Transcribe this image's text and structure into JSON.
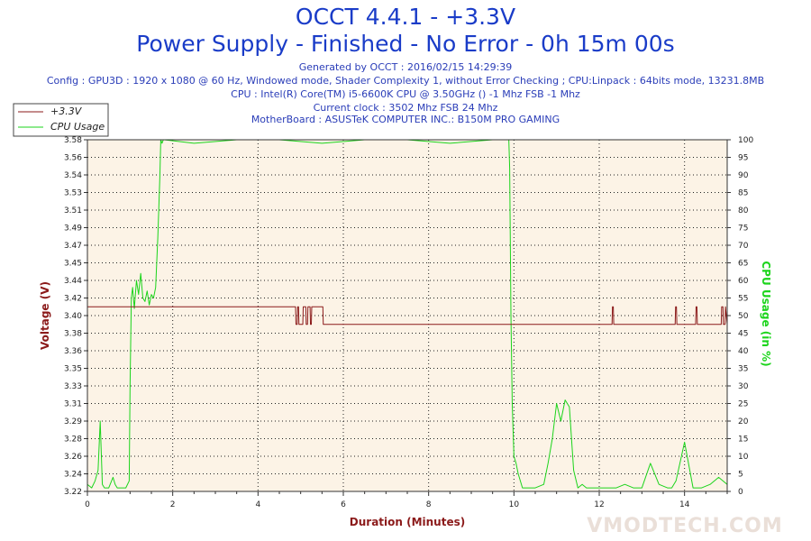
{
  "header": {
    "title": "OCCT 4.4.1 - +3.3V",
    "subtitle": "Power Supply - Finished - No Error - 0h 15m 00s",
    "info_lines": [
      "Generated by OCCT : 2016/02/15 14:29:39",
      "Config : GPU3D : 1920 x 1080 @ 60 Hz, Windowed mode, Shader Complexity 1, without Error Checking ; CPU:Linpack : 64bits mode, 13231.8MB",
      "CPU : Intel(R) Core(TM) i5-6600K CPU @ 3.50GHz () -1 Mhz FSB -1 Mhz",
      "Current clock : 3502 Mhz FSB 24 Mhz",
      "MotherBoard : ASUSTeK COMPUTER INC.: B150M PRO GAMING"
    ]
  },
  "watermark": "VMODTECH.COM",
  "colors": {
    "voltage": "#8b1a1a",
    "cpu_usage": "#1bd41b",
    "plot_bg": "#fcf3e6",
    "title": "#1a3cc8",
    "info": "#2a3db8"
  },
  "chart_data": {
    "type": "line",
    "title": "OCCT 4.4.1 - +3.3V",
    "subtitle": "Power Supply - Finished - No Error - 0h 15m 00s",
    "xlabel": "Duration (Minutes)",
    "ylabel_left": "Voltage (V)",
    "ylabel_right": "CPU Usage (in %)",
    "xlim": [
      0,
      15
    ],
    "x_ticks": [
      "0",
      "2",
      "4",
      "6",
      "8",
      "10",
      "12",
      "14"
    ],
    "y_left_lim": [
      3.22,
      3.58
    ],
    "y_left_ticks": [
      "3.22",
      "3.24",
      "3.26",
      "3.28",
      "3.29",
      "3.31",
      "3.33",
      "3.35",
      "3.36",
      "3.38",
      "3.40",
      "3.42",
      "3.44",
      "3.45",
      "3.47",
      "3.49",
      "3.51",
      "3.53",
      "3.54",
      "3.56",
      "3.58"
    ],
    "y_right_lim": [
      0,
      100
    ],
    "y_right_ticks": [
      "0",
      "5",
      "10",
      "15",
      "20",
      "25",
      "30",
      "35",
      "40",
      "45",
      "50",
      "55",
      "60",
      "65",
      "70",
      "75",
      "80",
      "85",
      "90",
      "95",
      "100"
    ],
    "grid": true,
    "legend_position": "top-left",
    "series": [
      {
        "name": "+3.3V",
        "axis": "left",
        "x": [
          0,
          4.88,
          4.89,
          4.92,
          4.93,
          4.95,
          4.96,
          5.05,
          5.06,
          5.12,
          5.13,
          5.16,
          5.17,
          5.22,
          5.23,
          5.25,
          5.26,
          5.52,
          5.53,
          5.6,
          5.61,
          12.3,
          12.31,
          12.33,
          12.34,
          13.78,
          13.79,
          13.81,
          13.82,
          14.26,
          14.27,
          14.29,
          14.3,
          14.86,
          14.87,
          14.9,
          14.91,
          14.95,
          14.96,
          15
        ],
        "y": [
          3.409,
          3.409,
          3.391,
          3.391,
          3.409,
          3.409,
          3.391,
          3.391,
          3.409,
          3.409,
          3.391,
          3.391,
          3.409,
          3.409,
          3.391,
          3.391,
          3.409,
          3.409,
          3.391,
          3.391,
          3.391,
          3.391,
          3.409,
          3.409,
          3.391,
          3.391,
          3.409,
          3.409,
          3.391,
          3.391,
          3.409,
          3.409,
          3.391,
          3.391,
          3.409,
          3.409,
          3.391,
          3.391,
          3.409,
          3.391
        ]
      },
      {
        "name": "CPU Usage",
        "axis": "right",
        "x": [
          0,
          0.1,
          0.18,
          0.25,
          0.3,
          0.35,
          0.4,
          0.5,
          0.6,
          0.65,
          0.7,
          0.8,
          0.9,
          0.98,
          1.0,
          1.03,
          1.06,
          1.1,
          1.15,
          1.2,
          1.25,
          1.3,
          1.35,
          1.4,
          1.45,
          1.5,
          1.55,
          1.6,
          1.65,
          1.7,
          1.72,
          1.75,
          1.78,
          1.8,
          2.5,
          3.5,
          4.5,
          5.5,
          6.5,
          7.5,
          8.5,
          9.5,
          9.88,
          9.9,
          9.93,
          9.96,
          10.0,
          10.05,
          10.1,
          10.2,
          10.3,
          10.5,
          10.7,
          10.8,
          10.9,
          11.0,
          11.1,
          11.2,
          11.3,
          11.4,
          11.5,
          11.6,
          11.7,
          11.8,
          12.0,
          12.2,
          12.4,
          12.6,
          12.8,
          13.0,
          13.2,
          13.4,
          13.6,
          13.7,
          13.8,
          14.0,
          14.2,
          14.4,
          14.6,
          14.8,
          15.0
        ],
        "y": [
          2,
          1,
          3,
          6,
          20,
          2,
          1,
          1,
          4,
          2,
          1,
          1,
          1,
          3,
          30,
          55,
          58,
          52,
          60,
          56,
          62,
          55,
          54,
          57,
          53,
          56,
          55,
          58,
          72,
          90,
          100,
          99,
          100,
          100,
          99,
          100,
          100,
          99,
          100,
          100,
          99,
          100,
          100,
          92,
          50,
          25,
          10,
          8,
          5,
          1,
          1,
          1,
          2,
          8,
          15,
          25,
          20,
          26,
          24,
          6,
          1,
          2,
          1,
          1,
          1,
          1,
          1,
          2,
          1,
          1,
          8,
          2,
          1,
          1,
          3,
          14,
          1,
          1,
          2,
          4,
          2
        ]
      }
    ]
  }
}
